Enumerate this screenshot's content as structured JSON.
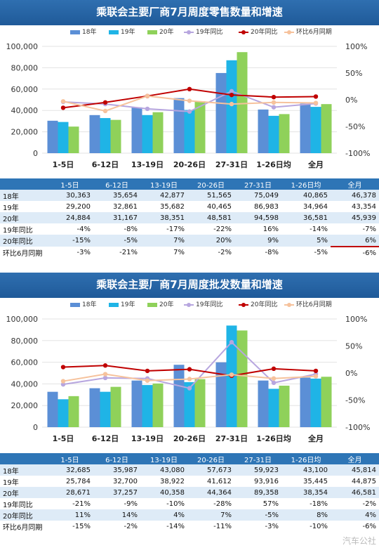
{
  "colors": {
    "y18": "#5b8fd6",
    "y19": "#1fb4e6",
    "y20": "#8fd15a",
    "r19": "#b7a6df",
    "r20": "#c00000",
    "mom": "#f6c29c"
  },
  "watermark": "汽车公社",
  "panels": [
    {
      "title": "乘联会主要厂商7月周度零售数量和增速",
      "legend": [
        "18年",
        "19年",
        "20年",
        "19年同比",
        "20年同比",
        "环比6月同期"
      ],
      "chart_data": {
        "type": "bar",
        "categories": [
          "1-5日",
          "6-12日",
          "13-19日",
          "20-26日",
          "27-31日",
          "1-26日均",
          "全月"
        ],
        "series": [
          {
            "name": "18年",
            "values": [
              30363,
              35654,
              42877,
              51565,
              75049,
              40865,
              46378
            ]
          },
          {
            "name": "19年",
            "values": [
              29200,
              32861,
              35682,
              40465,
              86983,
              34964,
              43354
            ]
          },
          {
            "name": "20年",
            "values": [
              24884,
              31167,
              38351,
              48581,
              94598,
              36581,
              45939
            ]
          }
        ],
        "lines": [
          {
            "name": "19年同比",
            "values": [
              -4,
              -8,
              -17,
              -22,
              16,
              -14,
              -7
            ]
          },
          {
            "name": "20年同比",
            "values": [
              -15,
              -5,
              7,
              20,
              9,
              5,
              6
            ]
          },
          {
            "name": "环比6月同期",
            "values": [
              -3,
              -21,
              7,
              -2,
              -8,
              -5,
              -6
            ]
          }
        ],
        "ylim": [
          0,
          100000
        ],
        "yticks": [
          "0",
          "20,000",
          "40,000",
          "60,000",
          "80,000",
          "100,000"
        ],
        "y2lim": [
          -100,
          100
        ],
        "y2ticks": [
          "-100%",
          "-50%",
          "0%",
          "50%",
          "100%"
        ]
      },
      "table": {
        "header": [
          "1-5日",
          "6-12日",
          "13-19日",
          "20-26日",
          "27-31日",
          "1-26日均",
          "全月"
        ],
        "rows": [
          {
            "label": "18年",
            "cells": [
              "30,363",
              "35,654",
              "42,877",
              "51,565",
              "75,049",
              "40,865",
              "46,378"
            ]
          },
          {
            "label": "19年",
            "cells": [
              "29,200",
              "32,861",
              "35,682",
              "40,465",
              "86,983",
              "34,964",
              "43,354"
            ]
          },
          {
            "label": "20年",
            "cells": [
              "24,884",
              "31,167",
              "38,351",
              "48,581",
              "94,598",
              "36,581",
              "45,939"
            ]
          },
          {
            "label": "19年同比",
            "cells": [
              "-4%",
              "-8%",
              "-17%",
              "-22%",
              "16%",
              "-14%",
              "-7%"
            ]
          },
          {
            "label": "20年同比",
            "cells": [
              "-15%",
              "-5%",
              "7%",
              "20%",
              "9%",
              "5%",
              "6%"
            ]
          },
          {
            "label": "环比6月同期",
            "cells": [
              "-3%",
              "-21%",
              "7%",
              "-2%",
              "-8%",
              "-5%",
              "-6%"
            ]
          }
        ]
      }
    },
    {
      "title": "乘联会主要厂商7月周度批发数量和增速",
      "legend": [
        "18年",
        "19年",
        "20年",
        "19年同比",
        "20年同比",
        "环比6月同期"
      ],
      "chart_data": {
        "type": "bar",
        "categories": [
          "1-5日",
          "6-12日",
          "13-19日",
          "20-26日",
          "27-31日",
          "1-26日均",
          "全月"
        ],
        "series": [
          {
            "name": "18年",
            "values": [
              32685,
              35987,
              43080,
              57673,
              59923,
              43100,
              45814
            ]
          },
          {
            "name": "19年",
            "values": [
              25784,
              32700,
              38922,
              41612,
              93916,
              35445,
              44875
            ]
          },
          {
            "name": "20年",
            "values": [
              28671,
              37257,
              40358,
              44364,
              89358,
              38354,
              46581
            ]
          }
        ],
        "lines": [
          {
            "name": "19年同比",
            "values": [
              -21,
              -9,
              -10,
              -28,
              57,
              -18,
              -2
            ]
          },
          {
            "name": "20年同比",
            "values": [
              11,
              14,
              4,
              7,
              -5,
              8,
              4
            ]
          },
          {
            "name": "环比6月同期",
            "values": [
              -15,
              -2,
              -14,
              -11,
              -3,
              -10,
              -6
            ]
          }
        ],
        "ylim": [
          0,
          100000
        ],
        "yticks": [
          "0",
          "20,000",
          "40,000",
          "60,000",
          "80,000",
          "100,000"
        ],
        "y2lim": [
          -100,
          100
        ],
        "y2ticks": [
          "-100%",
          "-50%",
          "0%",
          "50%",
          "100%"
        ]
      },
      "table": {
        "header": [
          "1-5日",
          "6-12日",
          "13-19日",
          "20-26日",
          "27-31日",
          "1-26日均",
          "全月"
        ],
        "rows": [
          {
            "label": "18年",
            "cells": [
              "32,685",
              "35,987",
              "43,080",
              "57,673",
              "59,923",
              "43,100",
              "45,814"
            ]
          },
          {
            "label": "19年",
            "cells": [
              "25,784",
              "32,700",
              "38,922",
              "41,612",
              "93,916",
              "35,445",
              "44,875"
            ]
          },
          {
            "label": "20年",
            "cells": [
              "28,671",
              "37,257",
              "40,358",
              "44,364",
              "89,358",
              "38,354",
              "46,581"
            ]
          },
          {
            "label": "19年同比",
            "cells": [
              "-21%",
              "-9%",
              "-10%",
              "-28%",
              "57%",
              "-18%",
              "-2%"
            ]
          },
          {
            "label": "20年同比",
            "cells": [
              "11%",
              "14%",
              "4%",
              "7%",
              "-5%",
              "8%",
              "4%"
            ]
          },
          {
            "label": "环比6月同期",
            "cells": [
              "-15%",
              "-2%",
              "-14%",
              "-11%",
              "-3%",
              "-10%",
              "-6%"
            ]
          }
        ]
      }
    }
  ]
}
